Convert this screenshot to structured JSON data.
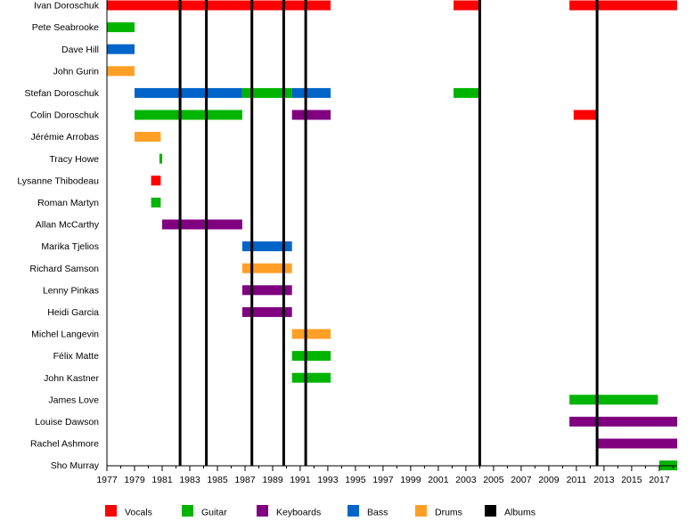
{
  "chart_data": {
    "type": "timeline",
    "title": "",
    "xlabel": "",
    "ylabel": "",
    "xlim": [
      1977,
      2018.3
    ],
    "x_ticks": [
      "1977",
      "1979",
      "1981",
      "1983",
      "1985",
      "1987",
      "1989",
      "1991",
      "1993",
      "1995",
      "1997",
      "1999",
      "2001",
      "2003",
      "2005",
      "2007",
      "2009",
      "2011",
      "2013",
      "2015",
      "2017"
    ],
    "members": [
      "Ivan Doroschuk",
      "Pete Seabrooke",
      "Dave Hill",
      "John Gurin",
      "Stefan Doroschuk",
      "Colin Doroschuk",
      "Jérémie Arrobas",
      "Tracy Howe",
      "Lysanne Thibodeau",
      "Roman Martyn",
      "Allan McCarthy",
      "Marika Tjelios",
      "Richard Samson",
      "Lenny Pinkas",
      "Heidi Garcia",
      "Michel Langevin",
      "Félix Matte",
      "John Kastner",
      "James Love",
      "Louise Dawson",
      "Rachel Ashmore",
      "Sho Murray"
    ],
    "roles": [
      {
        "name": "Vocals",
        "color": "#ff0000"
      },
      {
        "name": "Guitar",
        "color": "#00b400"
      },
      {
        "name": "Keyboards",
        "color": "#800080"
      },
      {
        "name": "Bass",
        "color": "#0064c8"
      },
      {
        "name": "Drums",
        "color": "#ff9f26"
      },
      {
        "name": "Albums",
        "color": "#000000"
      }
    ],
    "bars": [
      {
        "member": 0,
        "role": "Vocals",
        "start": 1977.0,
        "end": 1993.2
      },
      {
        "member": 0,
        "role": "Vocals",
        "start": 2002.1,
        "end": 2004.1
      },
      {
        "member": 0,
        "role": "Vocals",
        "start": 2010.5,
        "end": 2018.3
      },
      {
        "member": 1,
        "role": "Guitar",
        "start": 1977.0,
        "end": 1979.0
      },
      {
        "member": 2,
        "role": "Bass",
        "start": 1977.0,
        "end": 1979.0
      },
      {
        "member": 3,
        "role": "Drums",
        "start": 1977.0,
        "end": 1979.0
      },
      {
        "member": 4,
        "role": "Bass",
        "start": 1979.0,
        "end": 1986.8
      },
      {
        "member": 4,
        "role": "Guitar",
        "start": 1986.8,
        "end": 1990.4
      },
      {
        "member": 4,
        "role": "Bass",
        "start": 1990.4,
        "end": 1993.2
      },
      {
        "member": 4,
        "role": "Guitar",
        "start": 2002.1,
        "end": 2004.1
      },
      {
        "member": 5,
        "role": "Guitar",
        "start": 1979.0,
        "end": 1986.8
      },
      {
        "member": 5,
        "role": "Keyboards",
        "start": 1990.4,
        "end": 1993.2
      },
      {
        "member": 5,
        "role": "Vocals",
        "start": 2010.8,
        "end": 2012.5
      },
      {
        "member": 6,
        "role": "Drums",
        "start": 1979.0,
        "end": 1980.9
      },
      {
        "member": 7,
        "role": "Guitar",
        "start": 1980.8,
        "end": 1981.0
      },
      {
        "member": 8,
        "role": "Vocals",
        "start": 1980.2,
        "end": 1980.9
      },
      {
        "member": 9,
        "role": "Guitar",
        "start": 1980.2,
        "end": 1980.9
      },
      {
        "member": 10,
        "role": "Keyboards",
        "start": 1981.0,
        "end": 1986.8
      },
      {
        "member": 11,
        "role": "Bass",
        "start": 1986.8,
        "end": 1990.4
      },
      {
        "member": 12,
        "role": "Drums",
        "start": 1986.8,
        "end": 1990.4
      },
      {
        "member": 13,
        "role": "Keyboards",
        "start": 1986.8,
        "end": 1990.4
      },
      {
        "member": 14,
        "role": "Keyboards",
        "start": 1986.8,
        "end": 1990.4
      },
      {
        "member": 15,
        "role": "Drums",
        "start": 1990.4,
        "end": 1993.2
      },
      {
        "member": 16,
        "role": "Guitar",
        "start": 1990.4,
        "end": 1993.2
      },
      {
        "member": 17,
        "role": "Guitar",
        "start": 1990.4,
        "end": 1993.2
      },
      {
        "member": 18,
        "role": "Guitar",
        "start": 2010.5,
        "end": 2016.9
      },
      {
        "member": 19,
        "role": "Keyboards",
        "start": 2010.5,
        "end": 2018.3
      },
      {
        "member": 20,
        "role": "Keyboards",
        "start": 2012.5,
        "end": 2018.3
      },
      {
        "member": 21,
        "role": "Guitar",
        "start": 2017.0,
        "end": 2018.3
      }
    ],
    "albums": [
      1982.3,
      1984.2,
      1987.5,
      1989.8,
      1991.4,
      2004.0,
      2012.5
    ]
  }
}
